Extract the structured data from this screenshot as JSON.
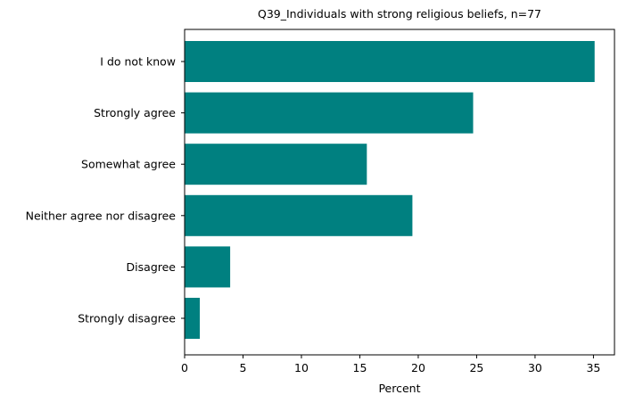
{
  "chart_data": {
    "type": "bar",
    "orientation": "horizontal",
    "title": "Q39_Individuals with strong religious beliefs, n=77",
    "xlabel": "Percent",
    "ylabel": "",
    "categories": [
      "I do not know",
      "Strongly agree",
      "Somewhat agree",
      "Neither agree nor disagree",
      "Disagree",
      "Strongly disagree"
    ],
    "values": [
      35.1,
      24.7,
      15.6,
      19.5,
      3.9,
      1.3
    ],
    "xlim": [
      0,
      36.8
    ],
    "xticks": [
      "0",
      "5",
      "10",
      "15",
      "20",
      "25",
      "30",
      "35"
    ],
    "bar_color": "#008080",
    "grid": false,
    "legend": "none"
  }
}
